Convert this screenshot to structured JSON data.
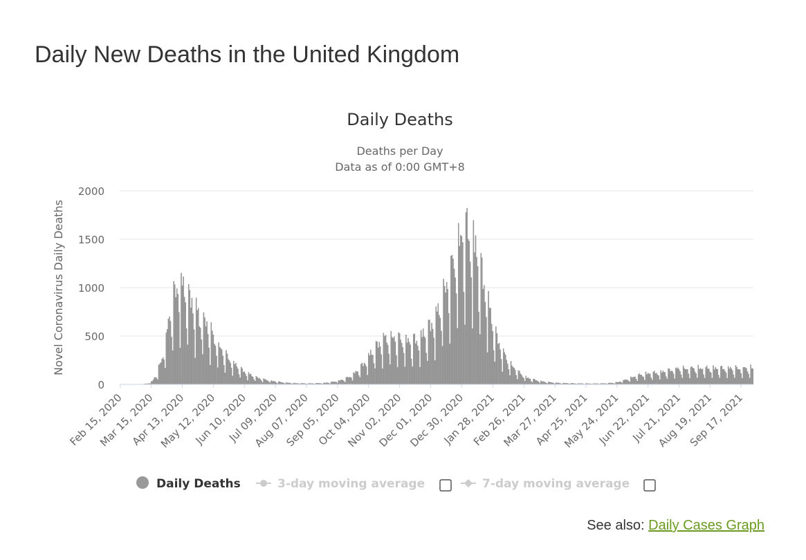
{
  "page": {
    "title": "Daily New Deaths in the United Kingdom"
  },
  "colors": {
    "bar": "#999999",
    "bar_stroke": "#7a7a7a",
    "grid": "#e6e6e6",
    "axis": "#ccd6eb",
    "legend_inactive": "#cccccc",
    "link": "#6a9a1f"
  },
  "chart_data": {
    "type": "bar",
    "title": "Daily Deaths",
    "subtitle_lines": [
      "Deaths per Day",
      "Data as of 0:00 GMT+8"
    ],
    "xlabel": "",
    "ylabel": "Novel Coronavirus Daily Deaths",
    "ylim": [
      0,
      2000
    ],
    "yticks": [
      0,
      500,
      1000,
      1500,
      2000
    ],
    "x_range": [
      "Feb 15, 2020",
      "Sep 28, 2021"
    ],
    "x_tick_labels": [
      "Feb 15, 2020",
      "Mar 15, 2020",
      "Apr 13, 2020",
      "May 12, 2020",
      "Jun 10, 2020",
      "Jul 09, 2020",
      "Aug 07, 2020",
      "Sep 05, 2020",
      "Oct 04, 2020",
      "Nov 02, 2020",
      "Dec 01, 2020",
      "Dec 30, 2020",
      "Jan 28, 2021",
      "Feb 26, 2021",
      "Mar 27, 2021",
      "Apr 25, 2021",
      "May 24, 2021",
      "Jun 22, 2021",
      "Jul 21, 2021",
      "Aug 19, 2021",
      "Sep 17, 2021"
    ],
    "tick_interval_days": 29,
    "value_anchors": [
      [
        0,
        0
      ],
      [
        20,
        0
      ],
      [
        26,
        8
      ],
      [
        30,
        30
      ],
      [
        34,
        90
      ],
      [
        38,
        200
      ],
      [
        42,
        420
      ],
      [
        46,
        700
      ],
      [
        50,
        900
      ],
      [
        54,
        1050
      ],
      [
        58,
        1000
      ],
      [
        62,
        950
      ],
      [
        66,
        880
      ],
      [
        70,
        780
      ],
      [
        74,
        680
      ],
      [
        78,
        600
      ],
      [
        82,
        520
      ],
      [
        86,
        450
      ],
      [
        90,
        380
      ],
      [
        94,
        320
      ],
      [
        98,
        270
      ],
      [
        102,
        230
      ],
      [
        106,
        190
      ],
      [
        110,
        160
      ],
      [
        114,
        130
      ],
      [
        118,
        105
      ],
      [
        122,
        85
      ],
      [
        126,
        70
      ],
      [
        130,
        55
      ],
      [
        134,
        45
      ],
      [
        138,
        38
      ],
      [
        142,
        30
      ],
      [
        146,
        25
      ],
      [
        150,
        20
      ],
      [
        155,
        15
      ],
      [
        160,
        12
      ],
      [
        165,
        10
      ],
      [
        170,
        9
      ],
      [
        175,
        8
      ],
      [
        180,
        9
      ],
      [
        185,
        10
      ],
      [
        190,
        12
      ],
      [
        196,
        18
      ],
      [
        200,
        25
      ],
      [
        205,
        35
      ],
      [
        210,
        50
      ],
      [
        215,
        75
      ],
      [
        220,
        110
      ],
      [
        225,
        160
      ],
      [
        230,
        220
      ],
      [
        235,
        290
      ],
      [
        240,
        360
      ],
      [
        245,
        400
      ],
      [
        250,
        420
      ],
      [
        255,
        430
      ],
      [
        260,
        410
      ],
      [
        265,
        400
      ],
      [
        270,
        390
      ],
      [
        275,
        400
      ],
      [
        280,
        420
      ],
      [
        285,
        470
      ],
      [
        290,
        540
      ],
      [
        295,
        620
      ],
      [
        300,
        720
      ],
      [
        305,
        850
      ],
      [
        310,
        980
      ],
      [
        315,
        1150
      ],
      [
        320,
        1280
      ],
      [
        325,
        1280
      ],
      [
        330,
        1200
      ],
      [
        335,
        1050
      ],
      [
        340,
        850
      ],
      [
        345,
        650
      ],
      [
        350,
        480
      ],
      [
        355,
        350
      ],
      [
        360,
        250
      ],
      [
        365,
        180
      ],
      [
        370,
        130
      ],
      [
        375,
        90
      ],
      [
        380,
        60
      ],
      [
        385,
        45
      ],
      [
        390,
        35
      ],
      [
        395,
        25
      ],
      [
        400,
        20
      ],
      [
        410,
        12
      ],
      [
        420,
        10
      ],
      [
        430,
        8
      ],
      [
        440,
        7
      ],
      [
        450,
        8
      ],
      [
        455,
        10
      ],
      [
        460,
        14
      ],
      [
        465,
        20
      ],
      [
        470,
        35
      ],
      [
        475,
        50
      ],
      [
        480,
        70
      ],
      [
        485,
        85
      ],
      [
        490,
        95
      ],
      [
        495,
        100
      ],
      [
        500,
        105
      ],
      [
        505,
        110
      ],
      [
        510,
        120
      ],
      [
        515,
        130
      ],
      [
        520,
        140
      ],
      [
        525,
        140
      ],
      [
        531,
        145
      ],
      [
        591,
        145
      ]
    ],
    "annotated_peaks": {
      "spring_2020": 1150,
      "winter_2021": 1820
    },
    "weekday_pattern": [
      0.45,
      1.3,
      1.2,
      1.15,
      1.1,
      1.0,
      0.75
    ],
    "series": [
      {
        "name": "Daily Deaths",
        "visible": true
      },
      {
        "name": "3-day moving average",
        "visible": false
      },
      {
        "name": "7-day moving average",
        "visible": false
      }
    ]
  },
  "see_also": {
    "prefix": "See also:",
    "link_text": "Daily Cases Graph"
  }
}
